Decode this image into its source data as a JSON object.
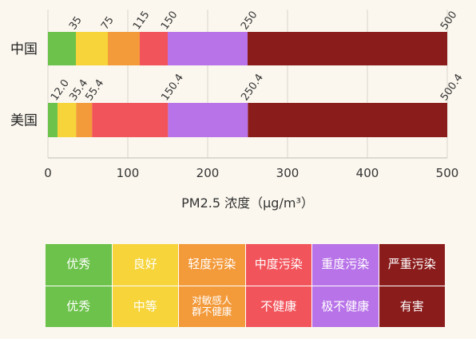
{
  "chart_data": {
    "type": "bar",
    "orientation": "horizontal-stacked",
    "xlabel": "PM2.5 浓度（μg/m³）",
    "xlim": [
      0,
      500
    ],
    "xticks": [
      "0",
      "100",
      "200",
      "300",
      "400",
      "500"
    ],
    "grid": true,
    "categories": [
      {
        "name": "中国",
        "boundaries": [
          0,
          35,
          75,
          115,
          150,
          250,
          500
        ],
        "boundary_labels": [
          "35",
          "75",
          "115",
          "150",
          "250",
          "500"
        ]
      },
      {
        "name": "美国",
        "boundaries": [
          0,
          12.0,
          35.4,
          55.4,
          150.4,
          250.4,
          500.4
        ],
        "boundary_labels": [
          "12.0",
          "35.4",
          "55.4",
          "150.4",
          "250.4",
          "500.4"
        ]
      }
    ],
    "level_colors": [
      "#6cc24a",
      "#f6d43a",
      "#f39a3a",
      "#f2545b",
      "#b873e8",
      "#8b1c1c"
    ]
  },
  "legend": {
    "china_labels": [
      "优秀",
      "良好",
      "轻度污染",
      "中度污染",
      "重度污染",
      "严重污染"
    ],
    "us_labels": [
      "优秀",
      "中等",
      "对敏感人\n群不健康",
      "不健康",
      "极不健康",
      "有害"
    ]
  }
}
